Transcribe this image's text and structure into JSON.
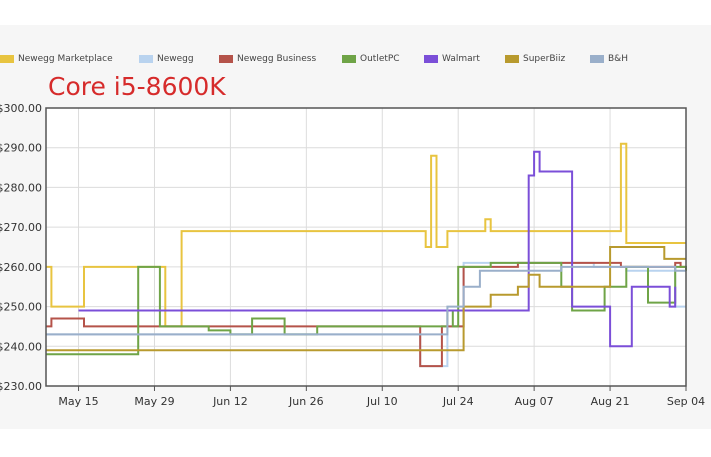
{
  "chart_data": {
    "type": "line",
    "title": "Core i5-8600K",
    "xlabel": "",
    "ylabel": "",
    "y_ticks": [
      "$230.00",
      "$240.00",
      "$250.00",
      "$260.00",
      "$270.00",
      "$280.00",
      "$290.00",
      "$300.00"
    ],
    "x_ticks": [
      "May 15",
      "May 29",
      "Jun 12",
      "Jun 26",
      "Jul 10",
      "Jul 24",
      "Aug 07",
      "Aug 21",
      "Sep 04"
    ],
    "xlim": [
      "2018-05-09",
      "2018-09-04"
    ],
    "ylim": [
      230,
      300
    ],
    "grid": true,
    "legend_position": "top",
    "series": [
      {
        "name": "Newegg Marketplace",
        "color": "#e8c440",
        "points": [
          [
            "2018-05-09",
            260
          ],
          [
            "2018-05-10",
            250
          ],
          [
            "2018-05-16",
            260
          ],
          [
            "2018-05-31",
            245
          ],
          [
            "2018-06-03",
            269
          ],
          [
            "2018-07-18",
            265
          ],
          [
            "2018-07-19",
            288
          ],
          [
            "2018-07-20",
            265
          ],
          [
            "2018-07-22",
            269
          ],
          [
            "2018-07-29",
            272
          ],
          [
            "2018-07-30",
            269
          ],
          [
            "2018-08-23",
            291
          ],
          [
            "2018-08-24",
            266
          ],
          [
            "2018-09-04",
            266
          ]
        ]
      },
      {
        "name": "Newegg",
        "color": "#b9d3ef",
        "points": [
          [
            "2018-05-09",
            243
          ],
          [
            "2018-05-16",
            243
          ],
          [
            "2018-07-17",
            235
          ],
          [
            "2018-07-22",
            245
          ],
          [
            "2018-07-25",
            261
          ],
          [
            "2018-08-18",
            260
          ],
          [
            "2018-08-24",
            259
          ],
          [
            "2018-09-02",
            250
          ],
          [
            "2018-09-04",
            250
          ]
        ]
      },
      {
        "name": "Newegg Business",
        "color": "#b5534a",
        "points": [
          [
            "2018-05-09",
            245
          ],
          [
            "2018-05-10",
            247
          ],
          [
            "2018-05-16",
            245
          ],
          [
            "2018-07-17",
            235
          ],
          [
            "2018-07-21",
            245
          ],
          [
            "2018-07-25",
            260
          ],
          [
            "2018-08-04",
            261
          ],
          [
            "2018-08-22",
            261
          ],
          [
            "2018-08-23",
            260
          ],
          [
            "2018-09-02",
            261
          ],
          [
            "2018-09-03",
            260
          ],
          [
            "2018-09-04",
            260
          ]
        ]
      },
      {
        "name": "OutletPC",
        "color": "#6fa447",
        "points": [
          [
            "2018-05-09",
            238
          ],
          [
            "2018-05-26",
            260
          ],
          [
            "2018-05-30",
            245
          ],
          [
            "2018-06-08",
            244
          ],
          [
            "2018-06-12",
            243
          ],
          [
            "2018-06-16",
            247
          ],
          [
            "2018-06-22",
            243
          ],
          [
            "2018-06-28",
            245
          ],
          [
            "2018-07-22",
            249
          ],
          [
            "2018-07-23",
            245
          ],
          [
            "2018-07-24",
            260
          ],
          [
            "2018-07-30",
            261
          ],
          [
            "2018-08-12",
            255
          ],
          [
            "2018-08-14",
            249
          ],
          [
            "2018-08-20",
            255
          ],
          [
            "2018-08-24",
            260
          ],
          [
            "2018-08-28",
            251
          ],
          [
            "2018-09-02",
            260
          ],
          [
            "2018-09-04",
            259
          ]
        ]
      },
      {
        "name": "Walmart",
        "color": "#7b4fd8",
        "points": [
          [
            "2018-05-15",
            249
          ],
          [
            "2018-08-06",
            283
          ],
          [
            "2018-08-07",
            289
          ],
          [
            "2018-08-08",
            284
          ],
          [
            "2018-08-14",
            250
          ],
          [
            "2018-08-21",
            240
          ],
          [
            "2018-08-25",
            255
          ],
          [
            "2018-09-01",
            250
          ],
          [
            "2018-09-02",
            255
          ]
        ]
      },
      {
        "name": "SuperBiiz",
        "color": "#b89a2e",
        "points": [
          [
            "2018-05-09",
            239
          ],
          [
            "2018-07-22",
            239
          ],
          [
            "2018-07-25",
            250
          ],
          [
            "2018-07-30",
            253
          ],
          [
            "2018-08-04",
            255
          ],
          [
            "2018-08-06",
            258
          ],
          [
            "2018-08-08",
            255
          ],
          [
            "2018-08-21",
            265
          ],
          [
            "2018-08-31",
            262
          ],
          [
            "2018-09-04",
            262
          ]
        ]
      },
      {
        "name": "B&H",
        "color": "#9aafca",
        "points": [
          [
            "2018-05-09",
            243
          ],
          [
            "2018-07-22",
            250
          ],
          [
            "2018-07-25",
            255
          ],
          [
            "2018-07-28",
            259
          ],
          [
            "2018-08-12",
            260
          ],
          [
            "2018-08-24",
            260
          ],
          [
            "2018-09-02",
            259
          ],
          [
            "2018-09-04",
            259
          ]
        ]
      }
    ]
  }
}
